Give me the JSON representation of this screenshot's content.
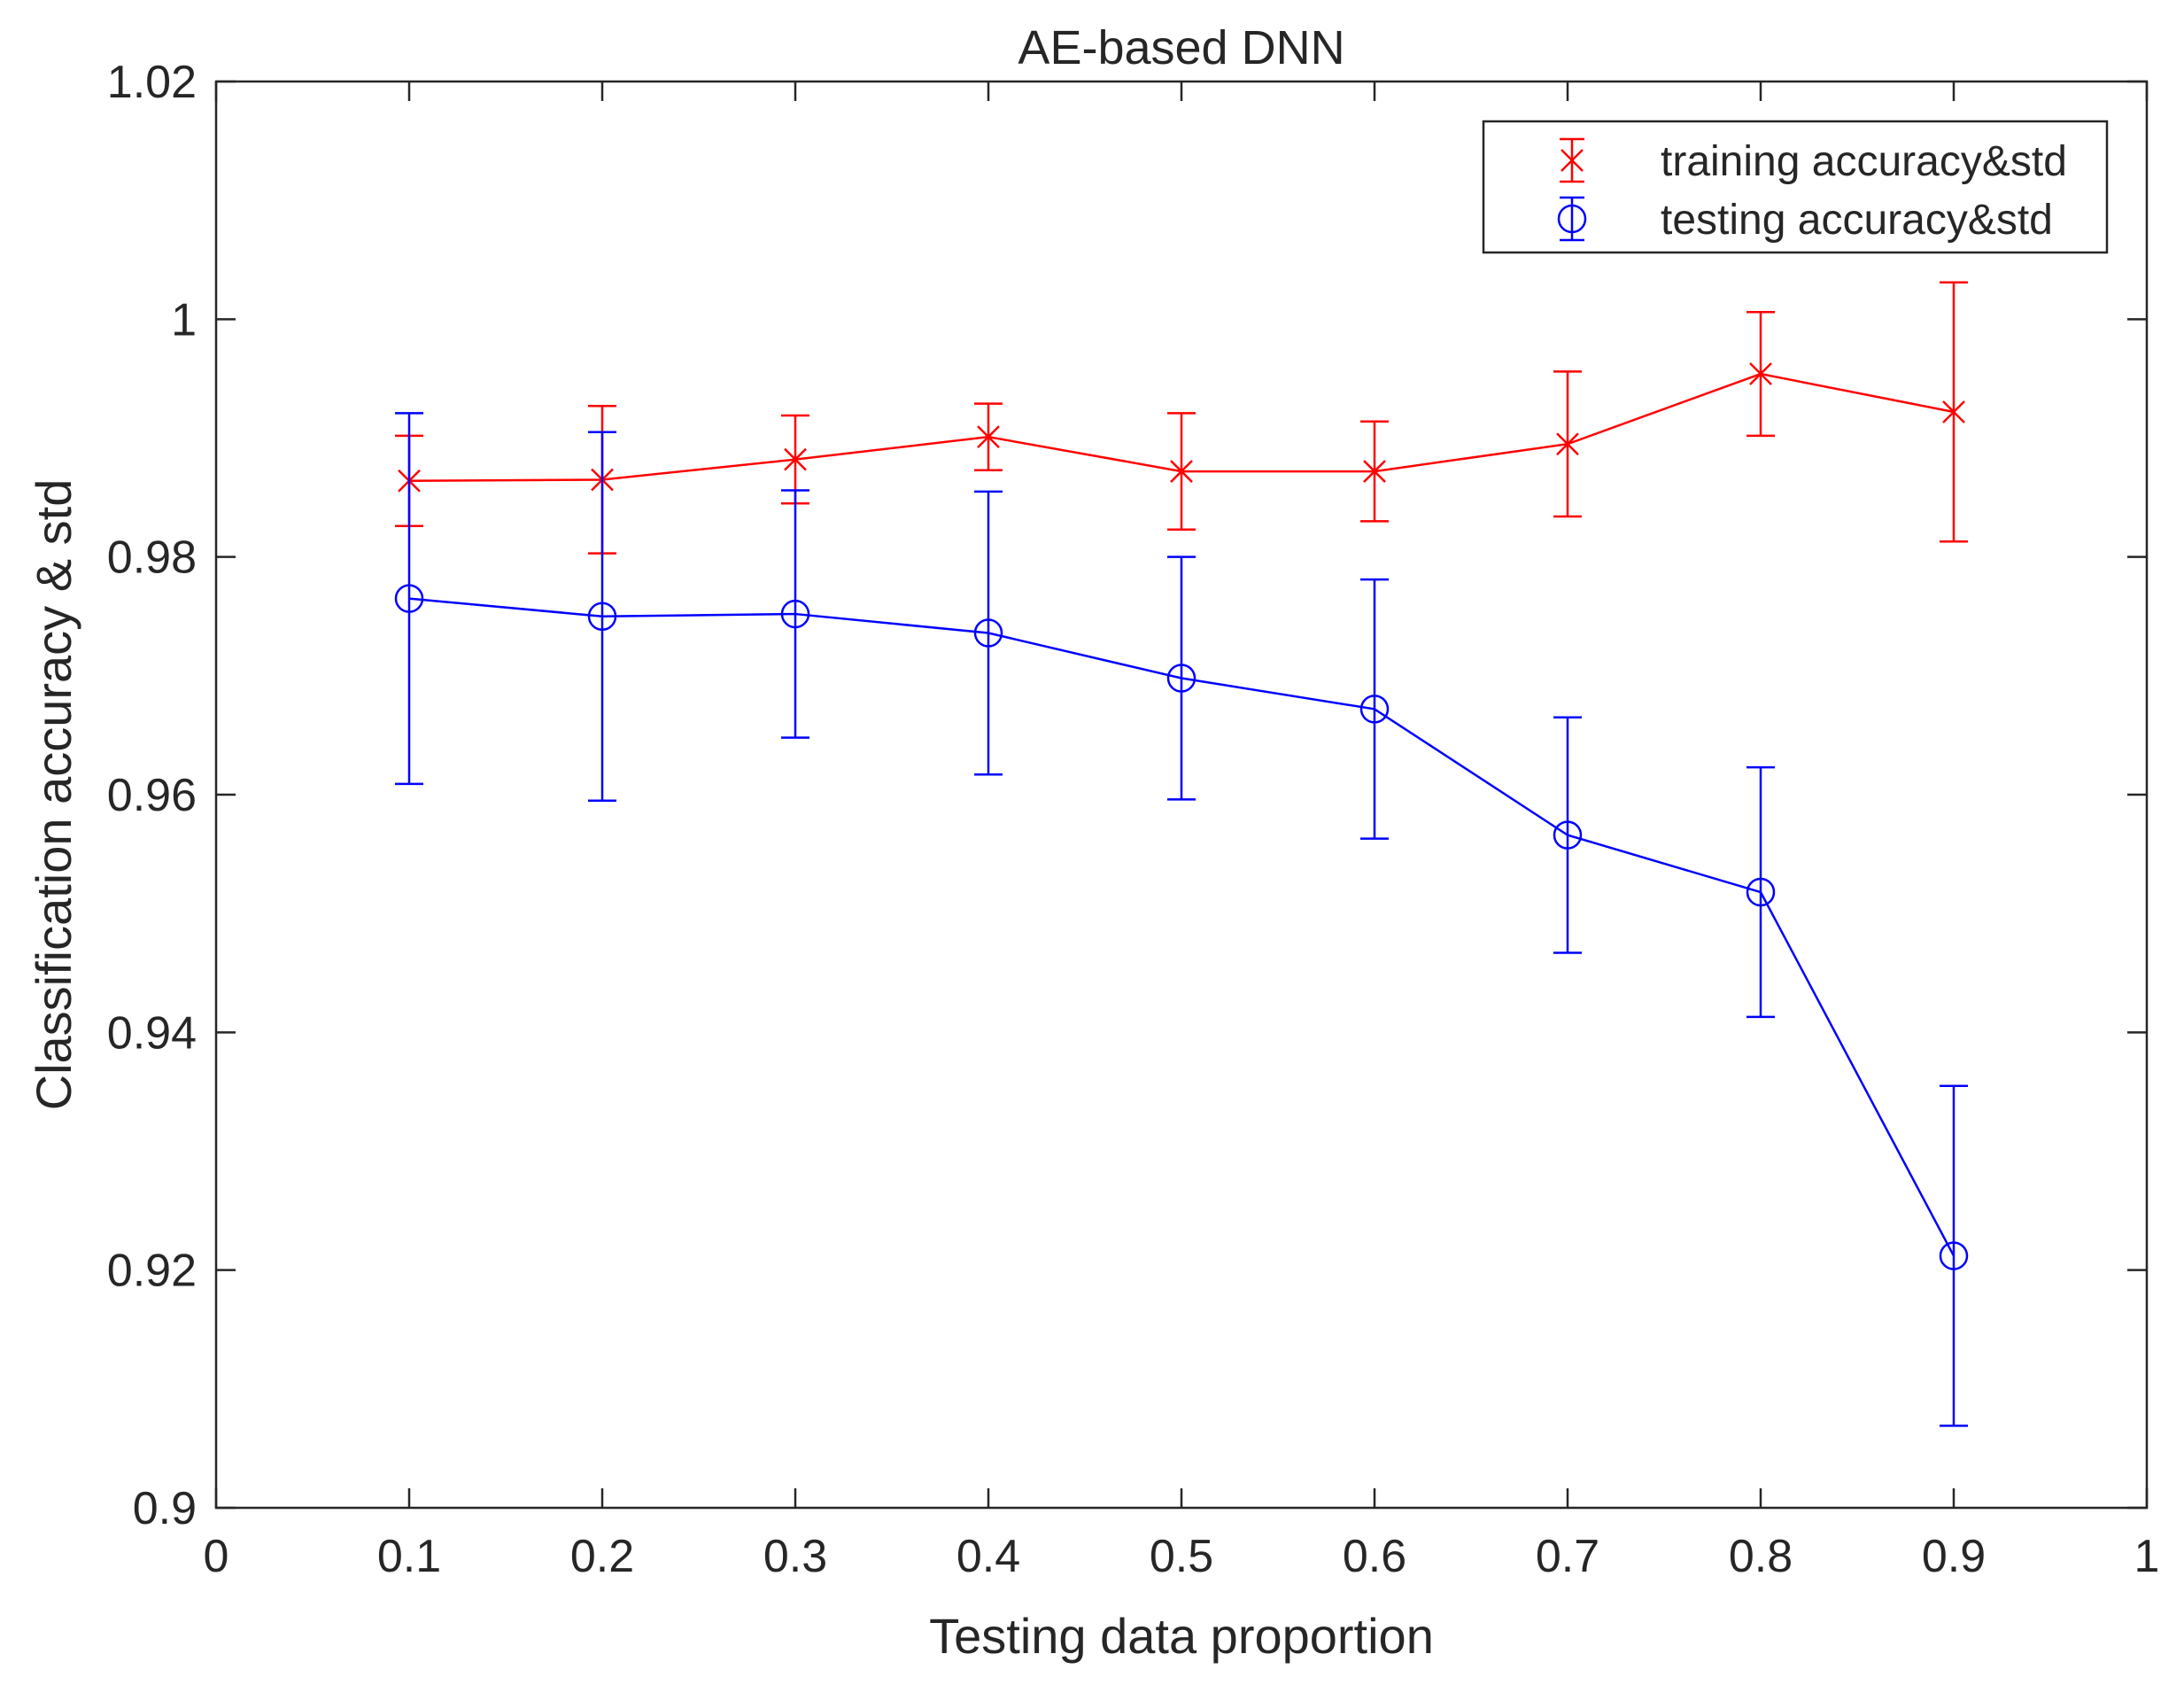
{
  "chart_data": {
    "type": "line",
    "title": "AE-based DNN",
    "xlabel": "Testing data proportion",
    "ylabel": "Classification accuracy & std",
    "xlim": [
      0,
      1
    ],
    "ylim": [
      0.9,
      1.02
    ],
    "xticks": [
      0,
      0.1,
      0.2,
      0.3,
      0.4,
      0.5,
      0.6,
      0.7,
      0.8,
      0.9,
      1
    ],
    "xtick_labels": [
      "0",
      "0.1",
      "0.2",
      "0.3",
      "0.4",
      "0.5",
      "0.6",
      "0.7",
      "0.8",
      "0.9",
      "1"
    ],
    "yticks": [
      0.9,
      0.92,
      0.94,
      0.96,
      0.98,
      1.0,
      1.02
    ],
    "ytick_labels": [
      "0.9",
      "0.92",
      "0.94",
      "0.96",
      "0.98",
      "1",
      "1.02"
    ],
    "grid": false,
    "legend_position": "top-right",
    "x": [
      0.1,
      0.2,
      0.3,
      0.4,
      0.5,
      0.6,
      0.7,
      0.8,
      0.9
    ],
    "series": [
      {
        "name": "training accuracy&std",
        "color": "#ff0000",
        "marker": "x",
        "values": [
          0.9864,
          0.9865,
          0.9882,
          0.9901,
          0.9872,
          0.9872,
          0.9895,
          0.9954,
          0.9922
        ],
        "std": [
          0.0038,
          0.0062,
          0.0037,
          0.0028,
          0.0049,
          0.0042,
          0.0061,
          0.0052,
          0.0109
        ]
      },
      {
        "name": "testing accuracy&std",
        "color": "#0000ff",
        "marker": "o",
        "values": [
          0.9765,
          0.975,
          0.9752,
          0.9736,
          0.9698,
          0.9672,
          0.9566,
          0.9518,
          0.9212
        ],
        "std": [
          0.0156,
          0.0155,
          0.0104,
          0.0119,
          0.0102,
          0.0109,
          0.0099,
          0.0105,
          0.0143
        ]
      }
    ]
  }
}
